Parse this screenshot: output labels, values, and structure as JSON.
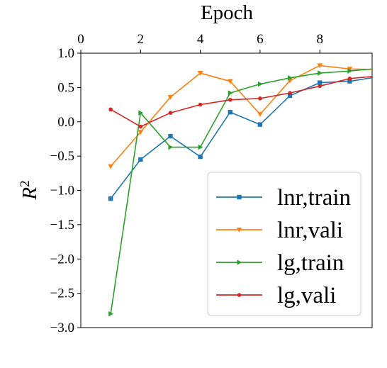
{
  "chart_data": {
    "type": "line",
    "xlabel": "Epoch",
    "ylabel": "R",
    "ylabel_superscript": "2",
    "xlim": [
      0,
      9.75
    ],
    "ylim": [
      -3.0,
      1.0
    ],
    "x_ticks": [
      "0",
      "2",
      "4",
      "6",
      "8"
    ],
    "y_ticks": [
      "1.0",
      "0.5",
      "0.0",
      "−0.5",
      "−1.0",
      "−1.5",
      "−2.0",
      "−2.5",
      "−3.0"
    ],
    "x_axis_position": "top",
    "grid": false,
    "legend_position": "lower-right",
    "x": [
      1,
      2,
      3,
      4,
      5,
      6,
      7,
      8,
      9,
      10
    ],
    "series": [
      {
        "name": "lnr,train",
        "color": "#1f77b4",
        "marker": "square",
        "values": [
          -1.12,
          -0.55,
          -0.21,
          -0.51,
          0.14,
          -0.04,
          0.38,
          0.57,
          0.59,
          0.66
        ]
      },
      {
        "name": "lnr,vali",
        "color": "#ff7f0e",
        "marker": "triangle-down",
        "values": [
          -0.65,
          -0.15,
          0.36,
          0.71,
          0.59,
          0.11,
          0.6,
          0.82,
          0.77,
          0.76
        ]
      },
      {
        "name": "lg,train",
        "color": "#2ca02c",
        "marker": "triangle-right",
        "values": [
          -2.8,
          0.13,
          -0.37,
          -0.37,
          0.42,
          0.55,
          0.64,
          0.71,
          0.74,
          0.78
        ]
      },
      {
        "name": "lg,vali",
        "color": "#d62728",
        "marker": "circle",
        "values": [
          0.18,
          -0.07,
          0.13,
          0.25,
          0.32,
          0.34,
          0.42,
          0.52,
          0.63,
          0.67
        ]
      }
    ]
  }
}
